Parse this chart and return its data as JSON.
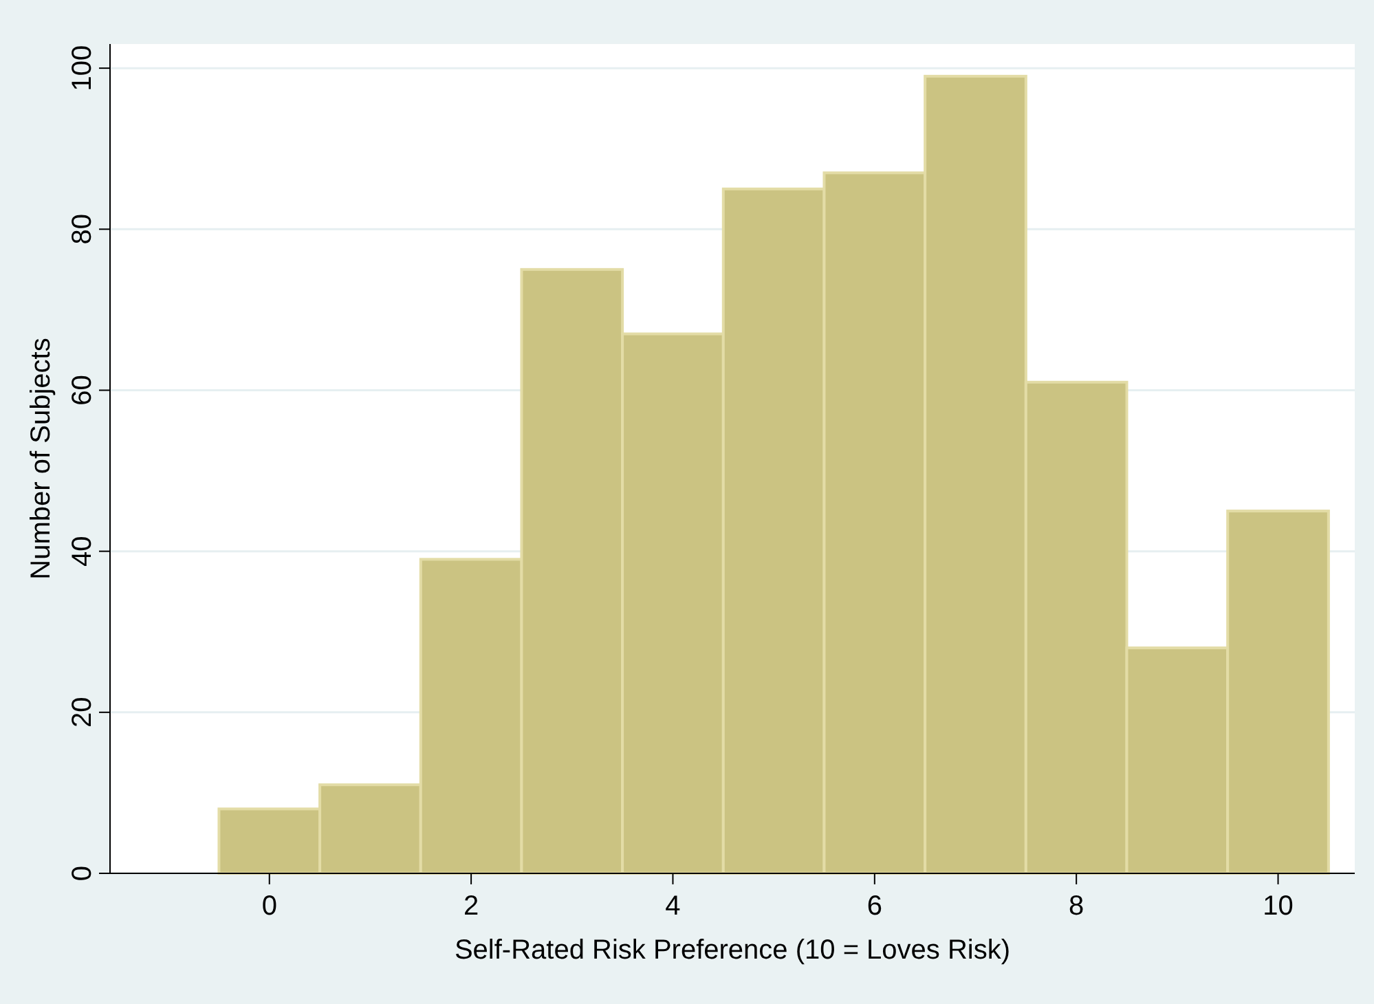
{
  "chart_data": {
    "type": "histogram",
    "xlabel": "Self-Rated Risk Preference (10 = Loves Risk)",
    "ylabel": "Number of Subjects",
    "bins": [
      -0.5,
      0.5,
      1.5,
      2.5,
      3.5,
      4.5,
      5.5,
      6.5,
      7.5,
      8.5,
      9.5,
      10.5
    ],
    "values": [
      8,
      11,
      39,
      75,
      67,
      85,
      87,
      99,
      61,
      28,
      45
    ],
    "color": "#cbc382",
    "xlim": [
      -1.58,
      10.76
    ],
    "xticks": [
      0,
      2,
      4,
      6,
      8,
      10
    ],
    "ylim": [
      0,
      103
    ],
    "yticks": [
      0,
      20,
      40,
      60,
      80,
      100
    ],
    "grid": "y"
  }
}
